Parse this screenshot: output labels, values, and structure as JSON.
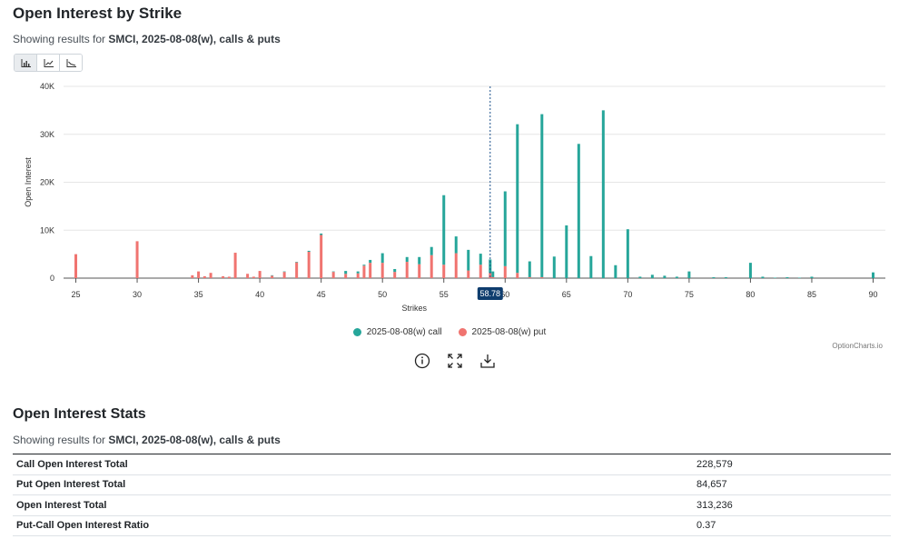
{
  "header": {
    "title": "Open Interest by Strike",
    "subtitle_prefix": "Showing results for ",
    "subtitle_bold": "SMCI, 2025-08-08(w), calls & puts"
  },
  "toolbar": {
    "icons": [
      "bar-chart-icon",
      "line-chart-icon",
      "area-chart-icon"
    ]
  },
  "chart_data": {
    "type": "bar",
    "stacked": true,
    "xlabel": "Strikes",
    "ylabel": "Open Interest",
    "ylim": [
      0,
      40000
    ],
    "yticks": [
      "0",
      "10K",
      "20K",
      "30K",
      "40K"
    ],
    "xticks": [
      25,
      30,
      35,
      40,
      45,
      50,
      55,
      60,
      65,
      70,
      75,
      80,
      85,
      90
    ],
    "xlim": [
      24,
      91
    ],
    "price_marker": "58.78",
    "price_value": 58.78,
    "grid": true,
    "legend_position": "bottom",
    "colors": {
      "call": "#26a69a",
      "put": "#f07470"
    },
    "series": [
      {
        "name": "2025-08-08(w) call",
        "x": [
          25,
          30,
          34.5,
          35,
          35.5,
          36,
          37,
          37.5,
          38,
          39,
          39.5,
          40,
          41,
          42,
          43,
          44,
          45,
          46,
          47,
          48,
          48.5,
          49,
          50,
          51,
          52,
          53,
          54,
          55,
          56,
          57,
          58,
          58.78,
          59,
          60,
          61,
          62,
          63,
          64,
          65,
          66,
          67,
          68,
          69,
          70,
          71,
          72,
          73,
          74,
          75,
          77,
          78,
          80,
          81,
          82,
          83,
          84,
          85,
          90
        ],
        "values": [
          0,
          0,
          0,
          0,
          0,
          0,
          0,
          0,
          0,
          0,
          0,
          0,
          100,
          100,
          100,
          200,
          300,
          100,
          600,
          400,
          200,
          600,
          2000,
          600,
          1000,
          1500,
          1700,
          14500,
          3500,
          4300,
          2300,
          2800,
          1200,
          15600,
          31000,
          3300,
          34000,
          4500,
          11000,
          28000,
          4600,
          35000,
          2700,
          10200,
          300,
          700,
          500,
          300,
          1400,
          200,
          200,
          3200,
          300,
          100,
          200,
          100,
          300,
          1200
        ]
      },
      {
        "name": "2025-08-08(w) put",
        "x": [
          25,
          30,
          34.5,
          35,
          35.5,
          36,
          37,
          37.5,
          38,
          39,
          39.5,
          40,
          41,
          42,
          43,
          44,
          45,
          46,
          47,
          48,
          48.5,
          49,
          50,
          51,
          52,
          53,
          54,
          55,
          56,
          57,
          58,
          58.78,
          59,
          60,
          61,
          62,
          63,
          64,
          65,
          66,
          67,
          68,
          69,
          70,
          71,
          72,
          73,
          74,
          75,
          77,
          78,
          80,
          81,
          82,
          83,
          84,
          85,
          90
        ],
        "values": [
          5000,
          7700,
          600,
          1400,
          400,
          1100,
          400,
          300,
          5300,
          900,
          300,
          1500,
          500,
          1300,
          3300,
          5500,
          9000,
          1300,
          900,
          1000,
          2600,
          3200,
          3200,
          1300,
          3400,
          2900,
          4800,
          2800,
          5200,
          1600,
          2800,
          1100,
          200,
          2500,
          1100,
          200,
          200,
          0,
          0,
          0,
          0,
          0,
          0,
          0,
          0,
          0,
          0,
          0,
          0,
          0,
          0,
          0,
          0,
          0,
          0,
          0,
          0,
          0
        ]
      }
    ]
  },
  "tools": [
    "info-icon",
    "fullscreen-icon",
    "download-icon"
  ],
  "watermark": "OptionCharts.io",
  "stats": {
    "title": "Open Interest Stats",
    "subtitle_prefix": "Showing results for ",
    "subtitle_bold": "SMCI, 2025-08-08(w), calls & puts",
    "rows": [
      {
        "label": "Call Open Interest Total",
        "value": "228,579"
      },
      {
        "label": "Put Open Interest Total",
        "value": "84,657"
      },
      {
        "label": "Open Interest Total",
        "value": "313,236"
      },
      {
        "label": "Put-Call Open Interest Ratio",
        "value": "0.37"
      }
    ]
  }
}
